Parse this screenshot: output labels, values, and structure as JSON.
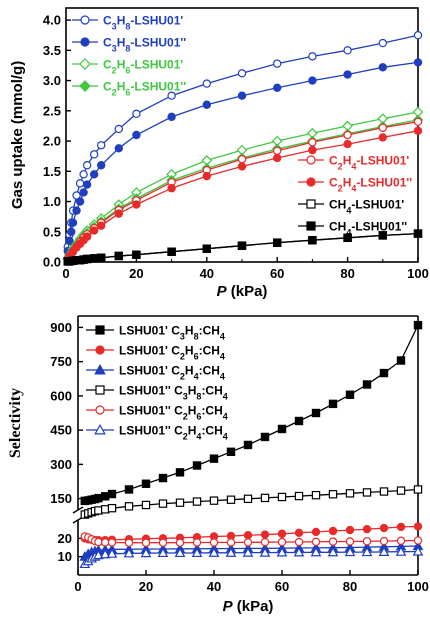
{
  "chart_data": [
    {
      "type": "line",
      "xlabel_italic": "P",
      "xlabel_unit": "(kPa)",
      "ylabel": "Gas uptake (mmol/g)",
      "xlim": [
        0,
        100
      ],
      "ylim": [
        0,
        4.2
      ],
      "xticks": [
        "0",
        "20",
        "40",
        "60",
        "80",
        "100"
      ],
      "yticks": [
        "0.0",
        "0.5",
        "1.0",
        "1.5",
        "2.0",
        "2.5",
        "3.0",
        "3.5",
        "4.0"
      ],
      "legends": [
        {
          "placement": "top-left",
          "entries": [
            0,
            1,
            2,
            3
          ]
        },
        {
          "placement": "center-right",
          "entries": [
            4,
            5,
            6,
            7
          ]
        }
      ],
      "series": [
        {
          "name": "C3H8-LSHU01'",
          "gas": "C",
          "gas_sub": "3",
          "gas2": "H",
          "gas2_sub": "8",
          "suffix": "-LSHU01'",
          "color": "#1f3fbf",
          "marker": "circle",
          "filled": false,
          "x": [
            0.5,
            1,
            1.5,
            2,
            3,
            4,
            5,
            6,
            8,
            10,
            15,
            20,
            30,
            40,
            50,
            60,
            70,
            80,
            90,
            100
          ],
          "y": [
            0.25,
            0.45,
            0.65,
            0.85,
            1.1,
            1.3,
            1.45,
            1.6,
            1.78,
            1.93,
            2.2,
            2.45,
            2.75,
            2.95,
            3.12,
            3.28,
            3.4,
            3.5,
            3.62,
            3.75
          ]
        },
        {
          "name": "C3H8-LSHU01''",
          "gas": "C",
          "gas_sub": "3",
          "gas2": "H",
          "gas2_sub": "8",
          "suffix": "-LSHU01''",
          "color": "#1f3fbf",
          "marker": "circle",
          "filled": true,
          "x": [
            0.5,
            1,
            1.5,
            2,
            3,
            4,
            5,
            6,
            8,
            10,
            15,
            20,
            30,
            40,
            50,
            60,
            70,
            80,
            90,
            100
          ],
          "y": [
            0.18,
            0.35,
            0.5,
            0.65,
            0.85,
            1.0,
            1.15,
            1.28,
            1.45,
            1.6,
            1.88,
            2.1,
            2.4,
            2.6,
            2.75,
            2.88,
            3.0,
            3.1,
            3.22,
            3.3
          ]
        },
        {
          "name": "C2H6-LSHU01'",
          "gas": "C",
          "gas_sub": "2",
          "gas2": "H",
          "gas2_sub": "6",
          "suffix": "-LSHU01'",
          "color": "#3fc83f",
          "marker": "diamond",
          "filled": false,
          "x": [
            0.5,
            1,
            2,
            3,
            4,
            5,
            6,
            8,
            10,
            15,
            20,
            30,
            40,
            50,
            60,
            70,
            80,
            90,
            100
          ],
          "y": [
            0.06,
            0.12,
            0.22,
            0.3,
            0.38,
            0.45,
            0.52,
            0.62,
            0.72,
            0.95,
            1.15,
            1.45,
            1.68,
            1.85,
            2.0,
            2.13,
            2.25,
            2.37,
            2.48
          ]
        },
        {
          "name": "C2H6-LSHU01''",
          "gas": "C",
          "gas_sub": "2",
          "gas2": "H",
          "gas2_sub": "6",
          "suffix": "-LSHU01''",
          "color": "#3fc83f",
          "marker": "diamond",
          "filled": true,
          "x": [
            0.5,
            1,
            2,
            3,
            4,
            5,
            6,
            8,
            10,
            15,
            20,
            30,
            40,
            50,
            60,
            70,
            80,
            90,
            100
          ],
          "y": [
            0.05,
            0.1,
            0.2,
            0.28,
            0.35,
            0.42,
            0.48,
            0.58,
            0.67,
            0.88,
            1.05,
            1.35,
            1.55,
            1.72,
            1.87,
            2.0,
            2.12,
            2.24,
            2.35
          ]
        },
        {
          "name": "C2H4-LSHU01'",
          "gas": "C",
          "gas_sub": "2",
          "gas2": "H",
          "gas2_sub": "4",
          "suffix": "-LSHU01'",
          "color": "#e82a2a",
          "marker": "circle",
          "filled": false,
          "x": [
            0.5,
            1,
            2,
            3,
            4,
            5,
            6,
            8,
            10,
            15,
            20,
            30,
            40,
            50,
            60,
            70,
            80,
            90,
            100
          ],
          "y": [
            0.05,
            0.1,
            0.18,
            0.26,
            0.33,
            0.4,
            0.46,
            0.56,
            0.65,
            0.86,
            1.02,
            1.32,
            1.52,
            1.7,
            1.84,
            1.98,
            2.1,
            2.22,
            2.32
          ]
        },
        {
          "name": "C2H4-LSHU01''",
          "gas": "C",
          "gas_sub": "2",
          "gas2": "H",
          "gas2_sub": "4",
          "suffix": "-LSHU01''",
          "color": "#e82a2a",
          "marker": "circle",
          "filled": true,
          "x": [
            0.5,
            1,
            2,
            3,
            4,
            5,
            6,
            8,
            10,
            15,
            20,
            30,
            40,
            50,
            60,
            70,
            80,
            90,
            100
          ],
          "y": [
            0.04,
            0.09,
            0.17,
            0.24,
            0.3,
            0.36,
            0.42,
            0.52,
            0.6,
            0.8,
            0.95,
            1.22,
            1.42,
            1.58,
            1.72,
            1.85,
            1.95,
            2.06,
            2.17
          ]
        },
        {
          "name": "CH4-LSHU01'",
          "gas": "CH",
          "gas_sub": "4",
          "gas2": "",
          "gas2_sub": "",
          "suffix": "-LSHU01'",
          "color": "#000000",
          "marker": "square",
          "filled": false,
          "x": [
            0.5,
            1,
            2,
            3,
            4,
            5,
            6,
            8,
            10,
            15,
            20,
            30,
            40,
            50,
            60,
            70,
            80,
            90,
            100
          ],
          "y": [
            0.01,
            0.01,
            0.02,
            0.03,
            0.03,
            0.04,
            0.05,
            0.06,
            0.07,
            0.1,
            0.12,
            0.17,
            0.22,
            0.27,
            0.32,
            0.36,
            0.4,
            0.44,
            0.47
          ]
        },
        {
          "name": "CH4-LSHU01''",
          "gas": "CH",
          "gas_sub": "4",
          "gas2": "",
          "gas2_sub": "",
          "suffix": "-LSHU01''",
          "color": "#000000",
          "marker": "square",
          "filled": true,
          "x": [
            0.5,
            1,
            2,
            3,
            4,
            5,
            6,
            8,
            10,
            15,
            20,
            30,
            40,
            50,
            60,
            70,
            80,
            90,
            100
          ],
          "y": [
            0.01,
            0.01,
            0.02,
            0.03,
            0.03,
            0.04,
            0.05,
            0.06,
            0.07,
            0.1,
            0.12,
            0.17,
            0.22,
            0.27,
            0.32,
            0.36,
            0.4,
            0.44,
            0.47
          ]
        }
      ]
    },
    {
      "type": "line",
      "xlabel_italic": "P",
      "xlabel_unit": "(kPa)",
      "ylabel": "Selectivity",
      "xlim": [
        0,
        100
      ],
      "y_broken_axis": true,
      "ylim_lower": [
        0,
        30
      ],
      "ylim_upper": [
        100,
        950
      ],
      "xticks": [
        "0",
        "20",
        "40",
        "60",
        "80",
        "100"
      ],
      "yticks_lower": [
        "10",
        "20"
      ],
      "yticks_upper": [
        "150",
        "300",
        "450",
        "600",
        "750",
        "900"
      ],
      "legend_placement": "top-left",
      "series": [
        {
          "name": "LSHU01' C3H8:CH4",
          "prefix": "LSHU01' ",
          "a": "C",
          "a_sub": "3",
          "b": "H",
          "b_sub": "8",
          "ratio": ":CH",
          "ratio_sub": "4",
          "color": "#000000",
          "marker": "square",
          "filled": true,
          "x": [
            2,
            3,
            4,
            5,
            6,
            8,
            10,
            15,
            20,
            25,
            30,
            35,
            40,
            45,
            50,
            55,
            60,
            65,
            70,
            75,
            80,
            85,
            90,
            95,
            100
          ],
          "y": [
            140,
            142,
            145,
            148,
            152,
            160,
            170,
            190,
            215,
            240,
            265,
            295,
            325,
            355,
            385,
            420,
            455,
            490,
            525,
            565,
            605,
            650,
            700,
            755,
            910
          ]
        },
        {
          "name": "LSHU01' C2H6:CH4",
          "prefix": "LSHU01' ",
          "a": "C",
          "a_sub": "2",
          "b": "H",
          "b_sub": "6",
          "ratio": ":CH",
          "ratio_sub": "4",
          "color": "#e82a2a",
          "marker": "circle",
          "filled": true,
          "x": [
            2,
            3,
            4,
            5,
            6,
            8,
            10,
            15,
            20,
            25,
            30,
            35,
            40,
            45,
            50,
            55,
            60,
            65,
            70,
            75,
            80,
            85,
            90,
            95,
            100
          ],
          "y": [
            20,
            19.5,
            19.2,
            19,
            19,
            19,
            19.2,
            19.5,
            19.8,
            20,
            20.3,
            20.6,
            21,
            21.3,
            21.7,
            22,
            22.5,
            23,
            23.5,
            24,
            24.5,
            25,
            25.6,
            26.2,
            26.5
          ]
        },
        {
          "name": "LSHU01' C2H4:CH4",
          "prefix": "LSHU01' ",
          "a": "C",
          "a_sub": "2",
          "b": "H",
          "b_sub": "4",
          "ratio": ":CH",
          "ratio_sub": "4",
          "color": "#1f3fbf",
          "marker": "triangle",
          "filled": true,
          "x": [
            2,
            3,
            4,
            5,
            6,
            8,
            10,
            15,
            20,
            25,
            30,
            35,
            40,
            45,
            50,
            55,
            60,
            65,
            70,
            75,
            80,
            85,
            90,
            95,
            100
          ],
          "y": [
            10,
            11.5,
            12.5,
            13,
            13.5,
            13.8,
            14,
            14,
            14.2,
            14.2,
            14.3,
            14.3,
            14.4,
            14.4,
            14.5,
            14.5,
            14.6,
            14.7,
            14.8,
            14.9,
            15,
            15.2,
            15.4,
            15.6,
            15.8
          ]
        },
        {
          "name": "LSHU01'' C3H8:CH4",
          "prefix": "LSHU01'' ",
          "a": "C",
          "a_sub": "3",
          "b": "H",
          "b_sub": "8",
          "ratio": ":CH",
          "ratio_sub": "4",
          "color": "#000000",
          "marker": "square",
          "filled": false,
          "x": [
            2,
            3,
            4,
            5,
            6,
            8,
            10,
            15,
            20,
            25,
            30,
            35,
            40,
            45,
            50,
            55,
            60,
            65,
            70,
            75,
            80,
            85,
            90,
            95,
            100
          ],
          "y": [
            80,
            85,
            90,
            95,
            98,
            103,
            108,
            116,
            122,
            128,
            132,
            137,
            141,
            145,
            149,
            153,
            157,
            161,
            165,
            169,
            173,
            177,
            181,
            185,
            190
          ]
        },
        {
          "name": "LSHU01'' C2H6:CH4",
          "prefix": "LSHU01'' ",
          "a": "C",
          "a_sub": "2",
          "b": "H",
          "b_sub": "6",
          "ratio": ":CH",
          "ratio_sub": "4",
          "color": "#e82a2a",
          "marker": "circle",
          "filled": false,
          "x": [
            2,
            3,
            4,
            5,
            6,
            8,
            10,
            15,
            20,
            25,
            30,
            35,
            40,
            45,
            50,
            55,
            60,
            65,
            70,
            75,
            80,
            85,
            90,
            95,
            100
          ],
          "y": [
            21,
            20.5,
            19.5,
            18.5,
            18,
            17.8,
            17.7,
            17.6,
            17.6,
            17.6,
            17.6,
            17.7,
            17.7,
            17.8,
            17.8,
            17.9,
            18,
            18,
            18.1,
            18.2,
            18.3,
            18.4,
            18.5,
            18.7,
            18.8
          ]
        },
        {
          "name": "LSHU01'' C2H4:CH4",
          "prefix": "LSHU01'' ",
          "a": "C",
          "a_sub": "2",
          "b": "H",
          "b_sub": "4",
          "ratio": ":CH",
          "ratio_sub": "4",
          "color": "#1f3fbf",
          "marker": "triangle",
          "filled": false,
          "x": [
            2,
            3,
            4,
            5,
            6,
            8,
            10,
            15,
            20,
            25,
            30,
            35,
            40,
            45,
            50,
            55,
            60,
            65,
            70,
            75,
            80,
            85,
            90,
            95,
            100
          ],
          "y": [
            6,
            7.5,
            9,
            10,
            10.8,
            11.3,
            11.6,
            11.8,
            11.9,
            12,
            12,
            12,
            12.1,
            12.1,
            12.2,
            12.2,
            12.3,
            12.3,
            12.4,
            12.4,
            12.5,
            12.5,
            12.6,
            12.7,
            12.8
          ]
        }
      ]
    }
  ]
}
